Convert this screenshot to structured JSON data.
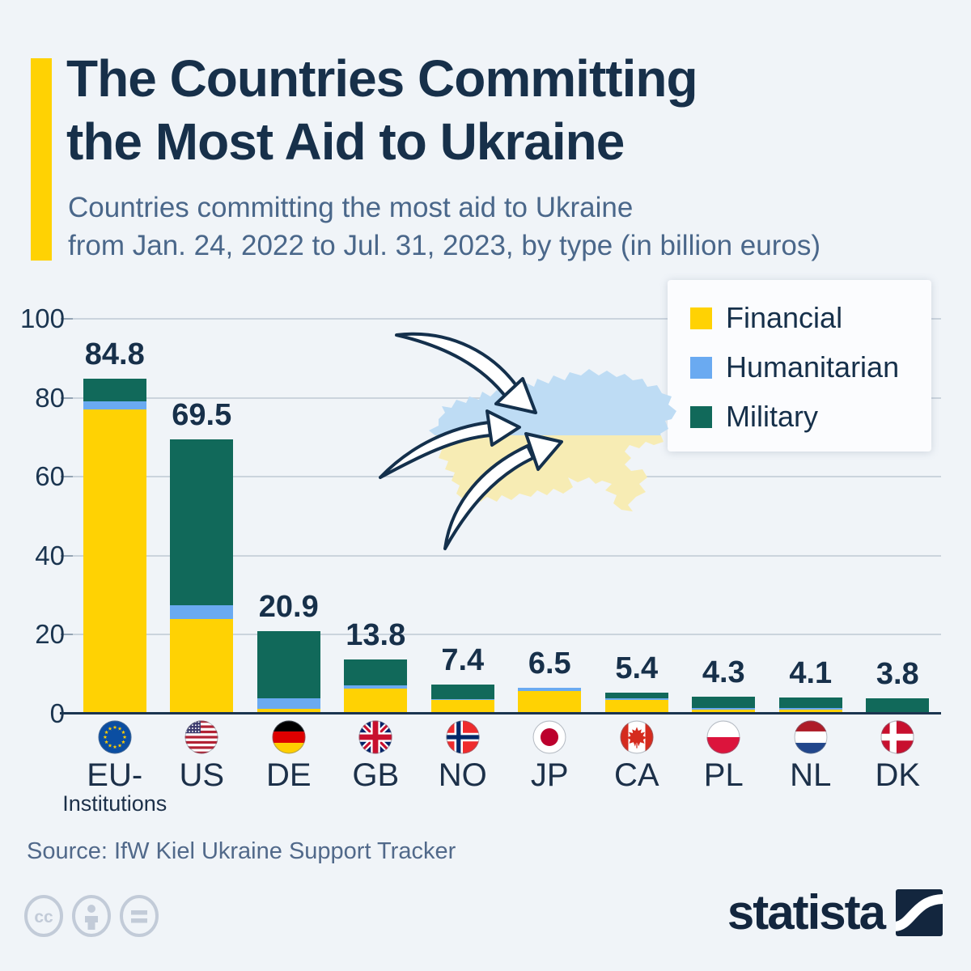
{
  "header": {
    "title_line1": "The Countries Committing",
    "title_line2": "the Most Aid to Ukraine",
    "subtitle_line1": "Countries committing the most aid to Ukraine",
    "subtitle_line2": "from Jan. 24, 2022 to Jul. 31, 2023, by type (in billion euros)"
  },
  "chart_data": {
    "type": "bar",
    "stacked": true,
    "title": "The Countries Committing the Most Aid to Ukraine",
    "unit": "billion euros",
    "categories": [
      "EU-Institutions",
      "US",
      "DE",
      "GB",
      "NO",
      "JP",
      "CA",
      "PL",
      "NL",
      "DK"
    ],
    "category_display": [
      {
        "line1": "EU-",
        "line2": "Institutions",
        "flag": "eu"
      },
      {
        "line1": "US",
        "flag": "us"
      },
      {
        "line1": "DE",
        "flag": "de"
      },
      {
        "line1": "GB",
        "flag": "gb"
      },
      {
        "line1": "NO",
        "flag": "no"
      },
      {
        "line1": "JP",
        "flag": "jp"
      },
      {
        "line1": "CA",
        "flag": "ca"
      },
      {
        "line1": "PL",
        "flag": "pl"
      },
      {
        "line1": "NL",
        "flag": "nl"
      },
      {
        "line1": "DK",
        "flag": "dk"
      }
    ],
    "totals": [
      84.8,
      69.5,
      20.9,
      13.8,
      7.4,
      6.5,
      5.4,
      4.3,
      4.1,
      3.8
    ],
    "series": [
      {
        "name": "Financial",
        "color": "#FFD203",
        "values": [
          77.0,
          23.9,
          1.2,
          6.3,
          3.5,
          5.7,
          3.4,
          1.0,
          1.0,
          0.1
        ]
      },
      {
        "name": "Humanitarian",
        "color": "#6AAAF1",
        "values": [
          2.2,
          3.6,
          2.6,
          0.9,
          0.2,
          0.8,
          0.4,
          0.4,
          0.4,
          0.3
        ]
      },
      {
        "name": "Military",
        "color": "#11695A",
        "values": [
          5.6,
          42.0,
          17.1,
          6.6,
          3.7,
          0.0,
          1.6,
          2.9,
          2.7,
          3.4
        ]
      }
    ],
    "ylim": [
      0,
      100
    ],
    "yticks": [
      0,
      20,
      40,
      60,
      80,
      100
    ],
    "grid": true,
    "legend_position": "top-right"
  },
  "legend": {
    "items": [
      {
        "label": "Financial",
        "color": "#FFD203"
      },
      {
        "label": "Humanitarian",
        "color": "#6AAAF1"
      },
      {
        "label": "Military",
        "color": "#11695A"
      }
    ]
  },
  "map": {
    "name": "ukraine-map",
    "top_color": "#BEDCF4",
    "bottom_color": "#F7ECB4",
    "arrow_outline_color": "#14304C"
  },
  "theme": {
    "background": "#F0F4F8",
    "accent_yellow": "#FFD203",
    "title_color": "#17304A",
    "subtitle_color": "#4A678A",
    "gridline_color": "#CBD4DD",
    "axis_color": "#1B3550"
  },
  "footer": {
    "source": "Source: IfW Kiel Ukraine Support Tracker",
    "brand": "statista",
    "license_icons": [
      "cc-icon",
      "attribution-person-icon",
      "equals-icon"
    ]
  }
}
